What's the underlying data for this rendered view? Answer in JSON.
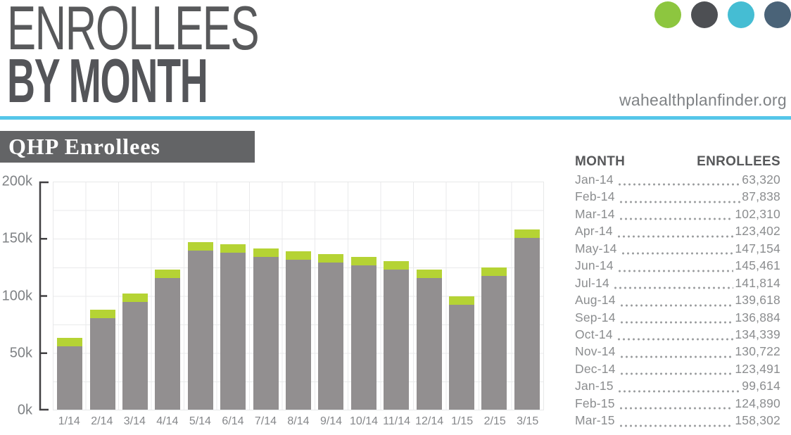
{
  "page": {
    "title_line1": "ENROLLEES",
    "title_line2": "BY MONTH",
    "website": "wahealthplanfinder.org",
    "section_title": "QHP Enrollees",
    "divider_color": "#55c6e9",
    "brand_dots": [
      {
        "name": "green",
        "color": "#8dc63f"
      },
      {
        "name": "dark-gray",
        "color": "#4d4f53"
      },
      {
        "name": "cyan",
        "color": "#45bdd3"
      },
      {
        "name": "slate-blue",
        "color": "#4a6378"
      }
    ]
  },
  "chart_data": {
    "type": "bar",
    "title": "QHP Enrollees",
    "categories": [
      "1/14",
      "2/14",
      "3/14",
      "4/14",
      "5/14",
      "6/14",
      "7/14",
      "8/14",
      "9/14",
      "10/14",
      "11/14",
      "12/14",
      "1/15",
      "2/15",
      "3/15"
    ],
    "values": [
      63320,
      87838,
      102310,
      123402,
      147154,
      145461,
      141814,
      139618,
      136884,
      134339,
      130722,
      123491,
      99614,
      124890,
      158302
    ],
    "yticks": [
      "0k",
      "50k",
      "100k",
      "150k",
      "200k"
    ],
    "ylim": [
      0,
      200000
    ],
    "grid": true,
    "legend": "none",
    "bar_color": "#928f90",
    "bar_cap_color": "#b5d334",
    "xlabel": "",
    "ylabel": ""
  },
  "table": {
    "headers": {
      "month": "MONTH",
      "enrollees": "ENROLLEES"
    },
    "rows": [
      {
        "month": "Jan-14",
        "enrollees": "63,320"
      },
      {
        "month": "Feb-14",
        "enrollees": "87,838"
      },
      {
        "month": "Mar-14",
        "enrollees": "102,310"
      },
      {
        "month": "Apr-14",
        "enrollees": "123,402"
      },
      {
        "month": "May-14",
        "enrollees": "147,154"
      },
      {
        "month": "Jun-14",
        "enrollees": "145,461"
      },
      {
        "month": "Jul-14",
        "enrollees": "141,814"
      },
      {
        "month": "Aug-14",
        "enrollees": "139,618"
      },
      {
        "month": "Sep-14",
        "enrollees": "136,884"
      },
      {
        "month": "Oct-14",
        "enrollees": "134,339"
      },
      {
        "month": "Nov-14",
        "enrollees": "130,722"
      },
      {
        "month": "Dec-14",
        "enrollees": "123,491"
      },
      {
        "month": "Jan-15",
        "enrollees": "99,614"
      },
      {
        "month": "Feb-15",
        "enrollees": "124,890"
      },
      {
        "month": "Mar-15",
        "enrollees": "158,302"
      }
    ]
  }
}
